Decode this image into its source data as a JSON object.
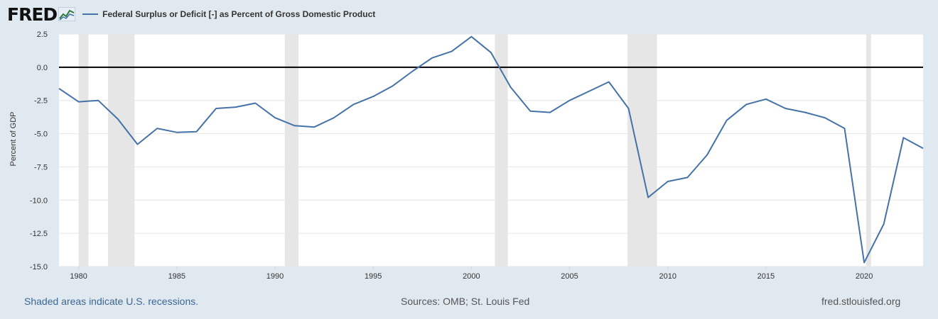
{
  "logo": {
    "text": "FRED",
    "icon": "chart-line-icon"
  },
  "legend": {
    "label": "Federal Surplus or Deficit [-] as Percent of Gross Domestic Product",
    "color": "#4572a7"
  },
  "footer": {
    "recession_note": "Shaded areas indicate U.S. recessions.",
    "sources": "Sources: OMB; St. Louis Fed",
    "site": "fred.stlouisfed.org"
  },
  "colors": {
    "background": "#e1e9f0",
    "plot_background": "#ffffff",
    "gridline": "#e6e6e6",
    "zero_line": "#000000",
    "recession": "#e6e6e6",
    "series": "#4572a7"
  },
  "chart_data": {
    "type": "line",
    "title": "Federal Surplus or Deficit [-] as Percent of Gross Domestic Product",
    "xlabel": "",
    "ylabel": "Percent of GDP",
    "xlim": [
      1979,
      2023
    ],
    "ylim": [
      -15.0,
      2.5
    ],
    "grid": true,
    "y_ticks": [
      2.5,
      0.0,
      -2.5,
      -5.0,
      -7.5,
      -10.0,
      -12.5,
      -15.0
    ],
    "y_tick_labels": [
      "2.5",
      "0.0",
      "-2.5",
      "-5.0",
      "-7.5",
      "-10.0",
      "-12.5",
      "-15.0"
    ],
    "x_ticks": [
      1980,
      1985,
      1990,
      1995,
      2000,
      2005,
      2010,
      2015,
      2020
    ],
    "x_tick_labels": [
      "1980",
      "1985",
      "1990",
      "1995",
      "2000",
      "2005",
      "2010",
      "2015",
      "2020"
    ],
    "recessions": [
      [
        1980.0,
        1980.5
      ],
      [
        1981.5,
        1982.85
      ],
      [
        1990.5,
        1991.2
      ],
      [
        2001.2,
        2001.85
      ],
      [
        2007.95,
        2009.45
      ],
      [
        2020.1,
        2020.35
      ]
    ],
    "series": [
      {
        "name": "Federal Surplus or Deficit [-] as Percent of Gross Domestic Product",
        "x": [
          1979,
          1980,
          1981,
          1982,
          1983,
          1984,
          1985,
          1986,
          1987,
          1988,
          1989,
          1990,
          1991,
          1992,
          1993,
          1994,
          1995,
          1996,
          1997,
          1998,
          1999,
          2000,
          2001,
          2002,
          2003,
          2004,
          2005,
          2006,
          2007,
          2008,
          2009,
          2010,
          2011,
          2012,
          2013,
          2014,
          2015,
          2016,
          2017,
          2018,
          2019,
          2020,
          2021,
          2022,
          2023
        ],
        "y": [
          -1.6,
          -2.6,
          -2.5,
          -3.9,
          -5.8,
          -4.6,
          -4.9,
          -4.85,
          -3.1,
          -3.0,
          -2.7,
          -3.8,
          -4.4,
          -4.5,
          -3.8,
          -2.8,
          -2.2,
          -1.4,
          -0.3,
          0.7,
          1.2,
          2.3,
          1.1,
          -1.5,
          -3.3,
          -3.4,
          -2.5,
          -1.8,
          -1.1,
          -3.1,
          -9.8,
          -8.6,
          -8.3,
          -6.6,
          -4.0,
          -2.8,
          -2.4,
          -3.1,
          -3.4,
          -3.8,
          -4.6,
          -14.7,
          -11.8,
          -5.3,
          -6.1
        ]
      }
    ]
  }
}
